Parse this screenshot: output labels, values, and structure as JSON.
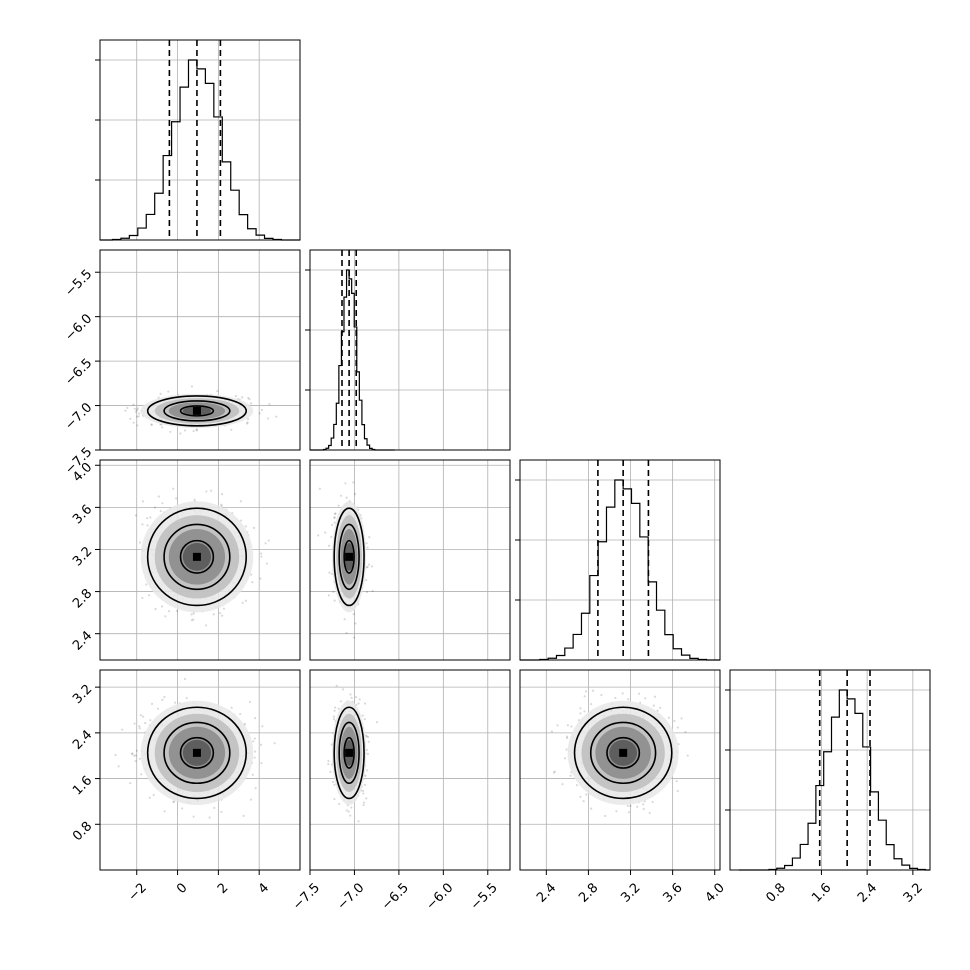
{
  "chart_data": {
    "type": "corner",
    "parameters": [
      {
        "range": [
          -3.8,
          6.0
        ],
        "ticks": [
          -2,
          0,
          2,
          4
        ],
        "tick_labels": [
          "−2",
          "0",
          "2",
          "4"
        ],
        "mean": 0.95,
        "sd": 1.15,
        "quantiles": [
          -0.4,
          0.95,
          2.1
        ]
      },
      {
        "range": [
          -7.5,
          -5.25
        ],
        "ticks": [
          -7.5,
          -7.0,
          -6.5,
          -6.0,
          -5.5
        ],
        "tick_labels": [
          "−7.5",
          "−7.0",
          "−6.5",
          "−6.0",
          "−5.5"
        ],
        "mean": -7.06,
        "sd": 0.08,
        "quantiles": [
          -7.14,
          -7.06,
          -6.98
        ]
      },
      {
        "range": [
          2.15,
          4.05
        ],
        "ticks": [
          2.4,
          2.8,
          3.2,
          3.6,
          4.0
        ],
        "tick_labels": [
          "2.4",
          "2.8",
          "3.2",
          "3.6",
          "4.0"
        ],
        "mean": 3.13,
        "sd": 0.22,
        "quantiles": [
          2.89,
          3.13,
          3.37
        ]
      },
      {
        "range": [
          0.0,
          3.5
        ],
        "ticks": [
          0.8,
          1.6,
          2.4,
          3.2
        ],
        "tick_labels": [
          "0.8",
          "1.6",
          "2.4",
          "3.2"
        ],
        "mean": 2.05,
        "sd": 0.38,
        "quantiles": [
          1.57,
          2.05,
          2.45
        ]
      }
    ],
    "grid": true
  }
}
